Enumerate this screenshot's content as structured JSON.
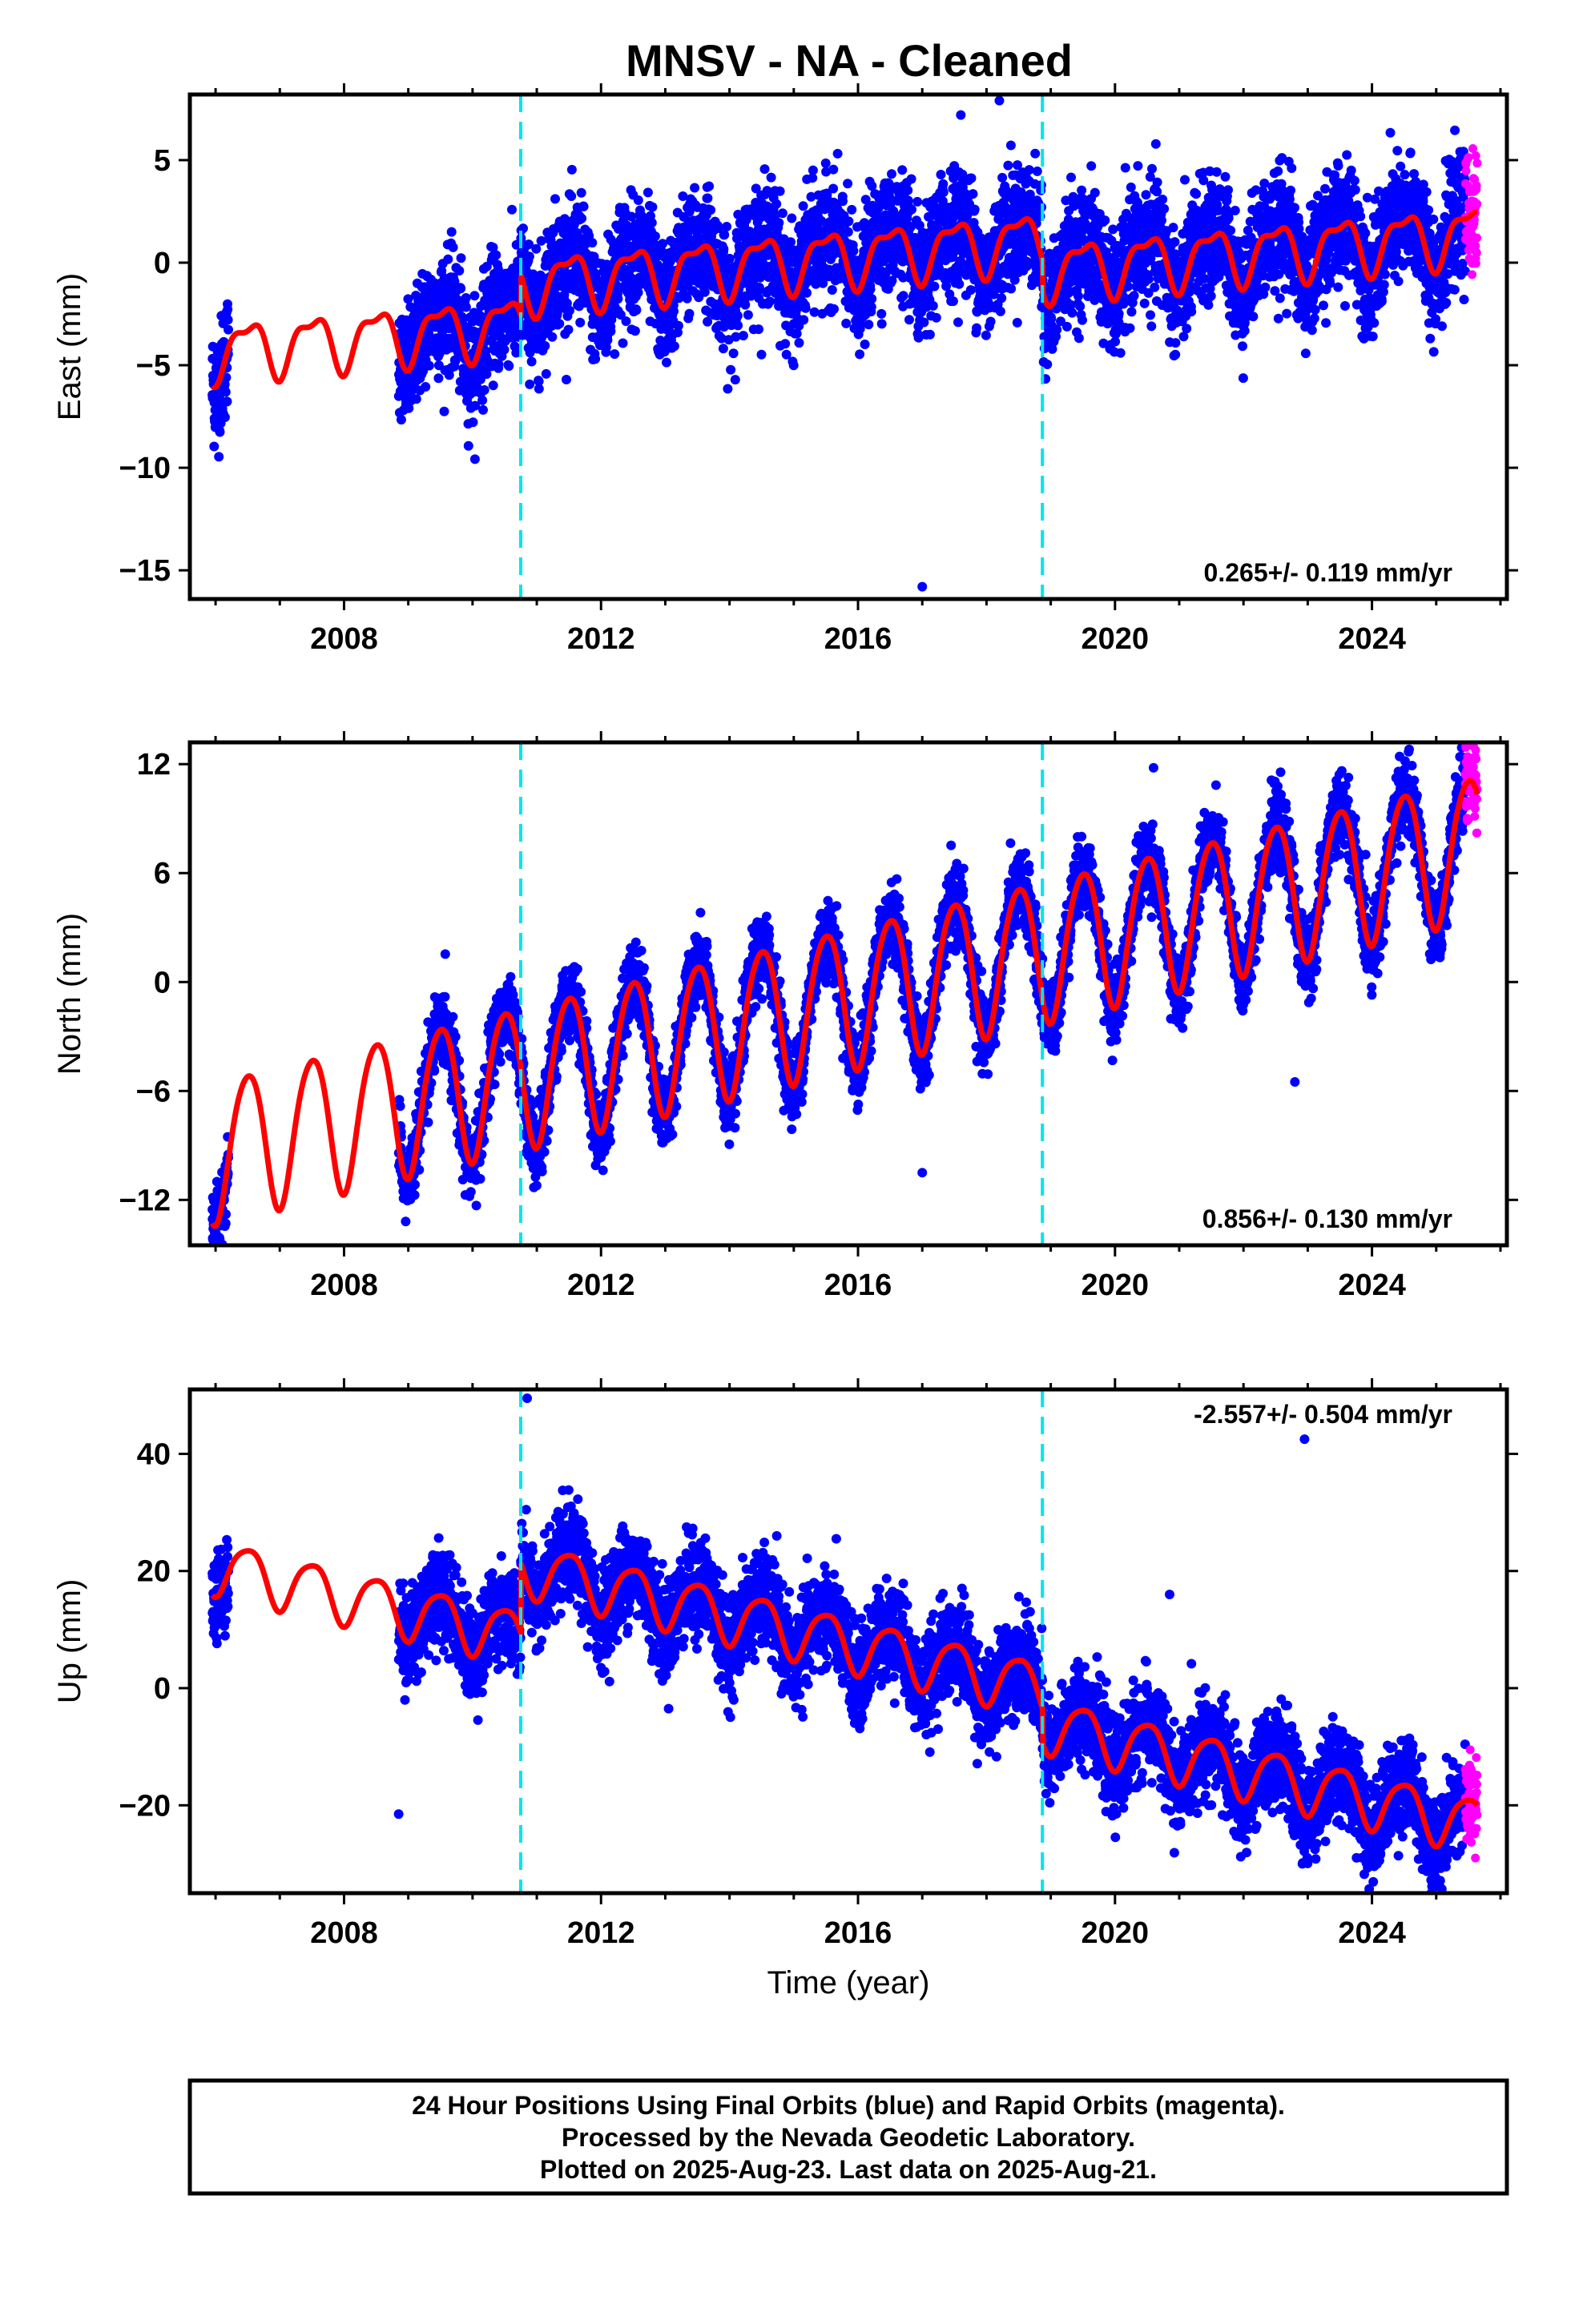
{
  "title": "MNSV  - NA - Cleaned",
  "footer": {
    "line1": "24 Hour Positions Using Final Orbits (blue) and Rapid Orbits (magenta).",
    "line2": "Processed by the Nevada Geodetic Laboratory.",
    "line3": "Plotted on 2025-Aug-23. Last data on 2025-Aug-21."
  },
  "colors": {
    "final_orbits": "#0000ff",
    "rapid_orbits": "#ff00ff",
    "model_fit": "#ff0000",
    "equipment_change": "#00e5ee",
    "frame": "#000000"
  },
  "chart_data": [
    {
      "type": "scatter",
      "panel": "east",
      "ylabel": "East (mm)",
      "xlabel": "",
      "xlim": [
        2005.6,
        2026.1
      ],
      "ylim": [
        -16.4,
        8.2
      ],
      "x_ticks": [
        2008,
        2012,
        2016,
        2020,
        2024
      ],
      "y_ticks": [
        5,
        0,
        -5,
        -10,
        -15
      ],
      "rate_label": "0.265+/- 0.119 mm/yr",
      "rate_position": "bottom-right",
      "breaks": [
        2010.75,
        2018.87
      ],
      "data_start": 2005.95,
      "data_gap": [
        2006.2,
        2008.85
      ],
      "rapid_start": 2025.45,
      "data_end": 2025.64,
      "model": {
        "offset_at_start": -4.3,
        "rate_mm_per_yr": 0.265,
        "annual_amplitude": 1.3,
        "semiannual_amplitude": 0.5,
        "steps": [
          2.0,
          -1.5
        ]
      },
      "scatter_sigma": 1.4,
      "outliers": [
        {
          "x": 2017.0,
          "y": -15.8
        },
        {
          "x": 2018.2,
          "y": 7.9
        },
        {
          "x": 2017.6,
          "y": 7.2
        }
      ]
    },
    {
      "type": "scatter",
      "panel": "north",
      "ylabel": "North (mm)",
      "xlabel": "",
      "xlim": [
        2005.6,
        2026.1
      ],
      "ylim": [
        -14.5,
        13.2
      ],
      "x_ticks": [
        2008,
        2012,
        2016,
        2020,
        2024
      ],
      "y_ticks": [
        12,
        6,
        0,
        -6,
        -12
      ],
      "rate_label": "0.856+/- 0.130 mm/yr",
      "rate_position": "bottom-right",
      "breaks": [
        2010.75,
        2018.87
      ],
      "data_start": 2005.95,
      "data_gap": [
        2006.2,
        2008.85
      ],
      "rapid_start": 2025.45,
      "data_end": 2025.64,
      "model": {
        "offset_at_start": -9.2,
        "rate_mm_per_yr": 0.856,
        "annual_amplitude": 3.9,
        "semiannual_amplitude": 0.4,
        "steps": [
          0.0,
          0.0
        ]
      },
      "scatter_sigma": 1.0,
      "outliers": [
        {
          "x": 2017.0,
          "y": -10.5
        },
        {
          "x": 2022.8,
          "y": -5.5
        },
        {
          "x": 2020.6,
          "y": 11.8
        }
      ]
    },
    {
      "type": "scatter",
      "panel": "up",
      "ylabel": "Up (mm)",
      "xlabel": "Time (year)",
      "xlim": [
        2005.6,
        2026.1
      ],
      "ylim": [
        -35,
        51
      ],
      "x_ticks": [
        2008,
        2012,
        2016,
        2020,
        2024
      ],
      "y_ticks": [
        40,
        20,
        0,
        -20
      ],
      "rate_label": "-2.557+/- 0.504 mm/yr",
      "rate_position": "top-right",
      "breaks": [
        2010.75,
        2018.87
      ],
      "data_start": 2005.95,
      "data_gap": [
        2006.2,
        2008.85
      ],
      "rapid_start": 2025.45,
      "data_end": 2025.64,
      "model": {
        "offset_at_start": 21.0,
        "rate_mm_per_yr": -2.557,
        "annual_amplitude": 4.6,
        "semiannual_amplitude": 0.8,
        "steps": [
          12.0,
          -6.0
        ]
      },
      "scatter_sigma": 4.0,
      "outliers": [
        {
          "x": 2022.95,
          "y": 42.5
        },
        {
          "x": 2008.85,
          "y": -21.5
        },
        {
          "x": 2020.85,
          "y": 16.0
        },
        {
          "x": 2010.85,
          "y": 49.5
        }
      ]
    }
  ]
}
